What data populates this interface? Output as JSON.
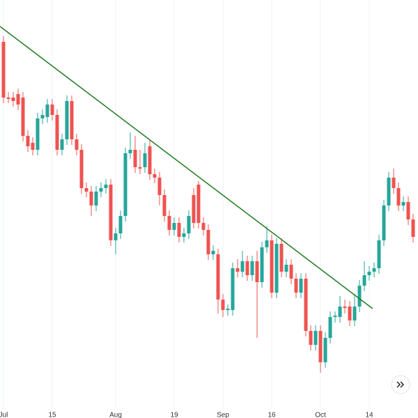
{
  "chart_data": {
    "type": "candlestick",
    "categories": [
      "Jul",
      null,
      null,
      null,
      null,
      null,
      null,
      null,
      null,
      null,
      "15",
      null,
      null,
      null,
      null,
      null,
      null,
      null,
      null,
      null,
      null,
      null,
      null,
      "Aug",
      null,
      null,
      null,
      null,
      null,
      null,
      null,
      null,
      null,
      null,
      null,
      "19",
      null,
      null,
      null,
      null,
      null,
      null,
      null,
      null,
      null,
      "Sep",
      null,
      null,
      null,
      null,
      null,
      null,
      null,
      null,
      null,
      "16",
      null,
      null,
      null,
      null,
      null,
      null,
      null,
      null,
      null,
      "Oct",
      null,
      null,
      null,
      null,
      null,
      null,
      null,
      null,
      null,
      "14",
      null,
      null,
      null,
      null,
      null,
      null,
      null,
      null,
      null
    ],
    "open": [
      540,
      460,
      460,
      465,
      460,
      405,
      395,
      385,
      430,
      432,
      450,
      435,
      385,
      400,
      455,
      400,
      385,
      330,
      325,
      305,
      325,
      330,
      335,
      255,
      265,
      290,
      380,
      385,
      360,
      360,
      390,
      350,
      345,
      320,
      290,
      270,
      280,
      260,
      265,
      320,
      335,
      280,
      270,
      235,
      235,
      170,
      155,
      155,
      215,
      210,
      225,
      205,
      225,
      195,
      245,
      255,
      180,
      250,
      210,
      220,
      200,
      180,
      200,
      125,
      105,
      125,
      80,
      115,
      145,
      145,
      160,
      160,
      140,
      160,
      190,
      205,
      210,
      215,
      255,
      305,
      345,
      330,
      305,
      310,
      285
    ],
    "high": [
      548,
      468,
      468,
      473,
      468,
      413,
      403,
      438,
      443,
      458,
      458,
      443,
      408,
      463,
      463,
      408,
      393,
      338,
      333,
      333,
      338,
      343,
      343,
      273,
      298,
      388,
      410,
      405,
      385,
      395,
      398,
      358,
      353,
      328,
      298,
      288,
      288,
      273,
      298,
      330,
      340,
      288,
      278,
      248,
      243,
      178,
      163,
      223,
      228,
      240,
      233,
      233,
      240,
      253,
      275,
      263,
      258,
      258,
      228,
      228,
      208,
      208,
      208,
      133,
      133,
      133,
      123,
      153,
      153,
      175,
      170,
      168,
      178,
      198,
      225,
      218,
      223,
      263,
      313,
      353,
      358,
      338,
      318,
      318,
      293
    ],
    "low": [
      452,
      452,
      447,
      442,
      397,
      382,
      377,
      377,
      422,
      424,
      427,
      377,
      377,
      392,
      392,
      377,
      322,
      317,
      290,
      297,
      317,
      322,
      247,
      235,
      257,
      282,
      372,
      352,
      350,
      352,
      342,
      337,
      305,
      282,
      262,
      262,
      252,
      252,
      257,
      272,
      272,
      262,
      227,
      227,
      150,
      145,
      147,
      147,
      202,
      202,
      197,
      197,
      115,
      187,
      237,
      172,
      172,
      202,
      202,
      192,
      172,
      172,
      117,
      97,
      97,
      65,
      72,
      107,
      137,
      137,
      150,
      132,
      132,
      152,
      182,
      197,
      202,
      207,
      247,
      297,
      322,
      297,
      297,
      277,
      252
    ],
    "close": [
      460,
      458,
      455,
      450,
      405,
      390,
      385,
      430,
      435,
      450,
      435,
      385,
      400,
      455,
      400,
      385,
      330,
      325,
      305,
      325,
      330,
      335,
      255,
      265,
      290,
      380,
      385,
      360,
      358,
      380,
      350,
      345,
      320,
      290,
      270,
      280,
      260,
      265,
      290,
      280,
      280,
      270,
      235,
      240,
      170,
      155,
      157,
      215,
      210,
      225,
      205,
      225,
      195,
      245,
      255,
      180,
      250,
      210,
      220,
      200,
      180,
      200,
      125,
      105,
      125,
      80,
      115,
      145,
      147,
      160,
      158,
      140,
      160,
      190,
      205,
      210,
      215,
      255,
      305,
      345,
      330,
      305,
      310,
      285,
      260
    ],
    "up_color": "#26a69a",
    "down_color": "#ef5350",
    "ylim": [
      0,
      600
    ],
    "grid": true,
    "trendline": {
      "x": [
        -0.7,
        75.7
      ],
      "y": [
        562,
        157
      ],
      "color": "#1f7a1f"
    }
  }
}
